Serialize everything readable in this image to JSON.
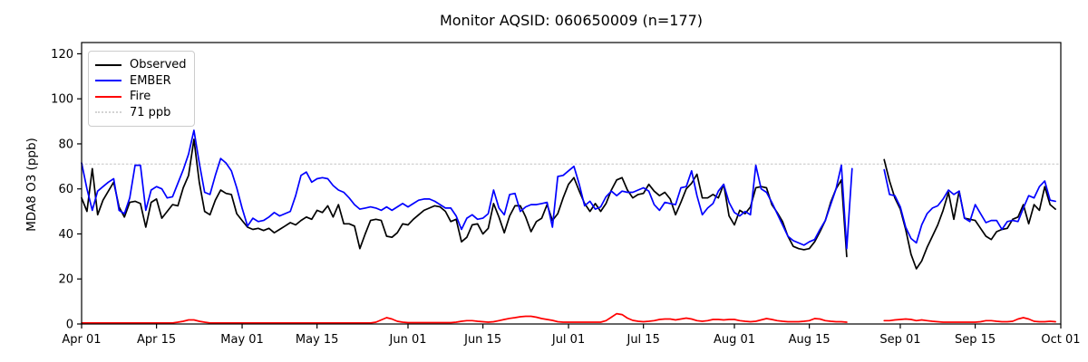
{
  "chart_data": {
    "type": "line",
    "title": "Monitor AQSID: 060650009 (n=177)",
    "xlabel": "",
    "ylabel": "MDA8 O3 (ppb)",
    "ylim": [
      0,
      125
    ],
    "y_ticks": [
      0,
      20,
      40,
      60,
      80,
      100,
      120
    ],
    "x_ticks": [
      {
        "label": "Apr 01",
        "day": 0
      },
      {
        "label": "Apr 15",
        "day": 14
      },
      {
        "label": "May 01",
        "day": 30
      },
      {
        "label": "May 15",
        "day": 44
      },
      {
        "label": "Jun 01",
        "day": 61
      },
      {
        "label": "Jun 15",
        "day": 75
      },
      {
        "label": "Jul 01",
        "day": 91
      },
      {
        "label": "Jul 15",
        "day": 105
      },
      {
        "label": "Aug 01",
        "day": 122
      },
      {
        "label": "Aug 15",
        "day": 136
      },
      {
        "label": "Sep 01",
        "day": 153
      },
      {
        "label": "Sep 15",
        "day": 167
      },
      {
        "label": "Oct 01",
        "day": 183
      }
    ],
    "x_days_total": 183,
    "grid": false,
    "legend_position": "upper left",
    "threshold": {
      "value": 71,
      "label": "71 ppb",
      "color": "#d3d3d3",
      "style": "dotted"
    },
    "series": [
      {
        "name": "Observed",
        "color": "#000000",
        "style": "solid",
        "values": [
          56,
          50,
          69,
          48.5,
          55,
          59,
          63,
          52,
          47.5,
          54,
          54.5,
          53.5,
          43,
          54,
          55.5,
          47,
          50,
          53,
          52.5,
          60.5,
          66,
          82,
          63,
          50,
          48.5,
          55,
          59.5,
          58,
          57.5,
          49,
          46,
          43,
          42,
          42.5,
          41.5,
          42.5,
          40.5,
          42,
          43.5,
          45,
          44,
          46,
          47.5,
          46.5,
          50.5,
          49.5,
          52.5,
          47.5,
          53,
          44.5,
          44.5,
          43.5,
          33.5,
          40,
          46,
          46.5,
          46,
          39,
          38.5,
          40.5,
          44.5,
          44,
          46.5,
          48.5,
          50.5,
          51.5,
          52.5,
          52,
          50,
          45.5,
          46.5,
          36.5,
          38.5,
          44,
          44.5,
          40,
          42.5,
          53.5,
          47.5,
          40.5,
          48,
          52.5,
          52.5,
          47.5,
          41,
          45.5,
          47,
          53,
          46,
          49,
          56,
          62,
          65,
          59,
          53.5,
          50,
          53.5,
          50,
          53.5,
          59.5,
          64,
          65,
          59.5,
          56,
          57.5,
          58,
          62,
          59,
          57,
          58.5,
          55.5,
          48.5,
          54,
          60,
          62.5,
          66.5,
          56,
          56,
          57.5,
          56,
          62,
          48,
          44,
          50.5,
          49,
          52,
          60.5,
          61,
          60.5,
          53,
          49.5,
          45.5,
          39,
          34.5,
          33.5,
          33,
          33.5,
          36.5,
          41,
          46,
          54,
          60,
          64,
          30,
          null,
          null,
          null,
          null,
          null,
          null,
          73,
          63.5,
          56,
          51,
          42,
          31,
          24.5,
          28,
          34,
          39,
          44,
          50.5,
          58.5,
          46.5,
          59,
          47,
          46.5,
          46,
          42.5,
          39,
          37.5,
          41,
          42,
          42.5,
          46.5,
          47.5,
          53,
          44.5,
          53,
          50.5,
          61,
          53,
          51
        ]
      },
      {
        "name": "EMBER",
        "color": "#0000ff",
        "style": "solid",
        "values": [
          71.5,
          60,
          50.5,
          59,
          61,
          63,
          64.5,
          50.5,
          49,
          56,
          70.5,
          70.5,
          50.5,
          59.5,
          61,
          60,
          56,
          56.5,
          62.5,
          68.5,
          75.5,
          86,
          71.5,
          58.5,
          57.5,
          66,
          73.5,
          71.5,
          68,
          60.5,
          51.5,
          43.5,
          47,
          45.5,
          46,
          47.5,
          49.5,
          48,
          49,
          50,
          57,
          66,
          67.5,
          63,
          64.5,
          65,
          64.5,
          61.5,
          59.5,
          58.5,
          56,
          53,
          51,
          51.5,
          52,
          51.5,
          50.5,
          52,
          50.5,
          52,
          53.5,
          52,
          53.5,
          55,
          55.5,
          55.5,
          54.5,
          53,
          51.5,
          51.5,
          48,
          42,
          47,
          48.5,
          46.5,
          47,
          49,
          59.5,
          51.5,
          48.5,
          57.5,
          58,
          50,
          52,
          53,
          53,
          53.5,
          54,
          43,
          65.5,
          66,
          68,
          70,
          62,
          52.5,
          54.5,
          51,
          52,
          56.5,
          59,
          57,
          59,
          58.5,
          58.5,
          59.5,
          60.5,
          59,
          53,
          50.5,
          54,
          53.5,
          53,
          60.5,
          61,
          68,
          57,
          48.5,
          51.5,
          53.5,
          59,
          62,
          54,
          49.5,
          48,
          50,
          48.5,
          70.5,
          60,
          58.5,
          54,
          49,
          44,
          39,
          37,
          36,
          35,
          36.5,
          37.5,
          42,
          46,
          53,
          60,
          70.5,
          33.5,
          69,
          null,
          null,
          null,
          null,
          null,
          68.5,
          57.5,
          57,
          52,
          43,
          38,
          36,
          44,
          49,
          51.5,
          52.5,
          55.5,
          59.5,
          57.5,
          59,
          47,
          45.5,
          53,
          49,
          45,
          46,
          46,
          42,
          45.5,
          46,
          45.5,
          51.5,
          57,
          56,
          61,
          63.5,
          55,
          54.5
        ]
      },
      {
        "name": "Fire",
        "color": "#ff0000",
        "style": "solid",
        "values": [
          0.5,
          0.5,
          0.5,
          0.5,
          0.5,
          0.5,
          0.5,
          0.5,
          0.5,
          0.5,
          0.5,
          0.5,
          0.5,
          0.5,
          0.5,
          0.5,
          0.5,
          0.5,
          0.8,
          1.2,
          1.8,
          1.8,
          1.2,
          0.8,
          0.5,
          0.5,
          0.5,
          0.5,
          0.5,
          0.5,
          0.5,
          0.5,
          0.5,
          0.5,
          0.5,
          0.5,
          0.5,
          0.5,
          0.5,
          0.5,
          0.5,
          0.5,
          0.5,
          0.5,
          0.5,
          0.5,
          0.5,
          0.5,
          0.5,
          0.5,
          0.5,
          0.5,
          0.5,
          0.5,
          0.5,
          0.8,
          1.8,
          2.8,
          2.2,
          1.2,
          0.8,
          0.6,
          0.6,
          0.6,
          0.6,
          0.6,
          0.6,
          0.6,
          0.6,
          0.6,
          0.8,
          1.2,
          1.5,
          1.5,
          1.2,
          1.0,
          0.8,
          1.0,
          1.5,
          2.0,
          2.5,
          2.8,
          3.2,
          3.4,
          3.4,
          3.0,
          2.4,
          2.0,
          1.6,
          1.0,
          0.8,
          0.8,
          0.8,
          0.8,
          0.8,
          0.8,
          0.8,
          0.8,
          1.5,
          3.0,
          4.6,
          4.2,
          2.6,
          1.6,
          1.2,
          1.0,
          1.2,
          1.5,
          2.0,
          2.2,
          2.2,
          1.8,
          2.2,
          2.6,
          2.2,
          1.5,
          1.2,
          1.5,
          2.0,
          2.0,
          1.8,
          2.0,
          2.0,
          1.5,
          1.2,
          1.0,
          1.2,
          1.8,
          2.4,
          2.0,
          1.5,
          1.2,
          1.0,
          1.0,
          1.0,
          1.2,
          1.5,
          2.4,
          2.2,
          1.5,
          1.2,
          1.0,
          1.0,
          0.8,
          null,
          null,
          null,
          null,
          null,
          null,
          1.5,
          1.5,
          1.8,
          2.0,
          2.2,
          2.0,
          1.5,
          1.8,
          1.5,
          1.2,
          1.0,
          0.8,
          0.8,
          0.8,
          0.8,
          0.8,
          0.8,
          0.8,
          1.0,
          1.5,
          1.5,
          1.2,
          1.0,
          1.0,
          1.2,
          2.2,
          2.8,
          2.2,
          1.2,
          1.0,
          1.0,
          1.2,
          1.0
        ]
      }
    ],
    "legend_items": [
      {
        "label": "Observed",
        "color": "#000000",
        "style": "solid"
      },
      {
        "label": "EMBER",
        "color": "#0000ff",
        "style": "solid"
      },
      {
        "label": "Fire",
        "color": "#ff0000",
        "style": "solid"
      },
      {
        "label": "71 ppb",
        "color": "#d3d3d3",
        "style": "dotted"
      }
    ]
  },
  "layout_colors": {
    "frame": "#000000",
    "background": "#ffffff"
  }
}
